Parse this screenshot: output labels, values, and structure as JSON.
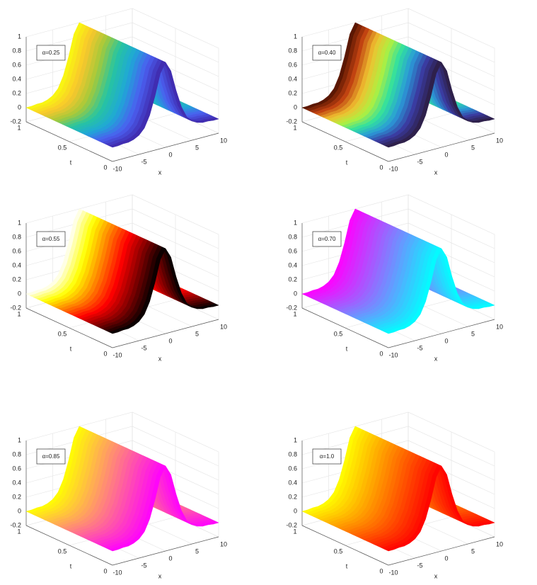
{
  "chart_data": [
    {
      "type": "surface",
      "annotation": "α=0.25",
      "xlabel": "x",
      "ylabel": "t",
      "x": [
        -10,
        -9,
        -8,
        -7,
        -6,
        -5,
        -4,
        -3,
        -2,
        -1,
        0,
        1,
        2,
        3,
        4,
        5,
        6,
        7,
        8,
        9,
        10
      ],
      "values": [
        0,
        0,
        0.01,
        0.01,
        0.03,
        0.07,
        0.15,
        0.31,
        0.56,
        0.86,
        1,
        0.86,
        0.56,
        0.31,
        0.15,
        0.07,
        0.03,
        0.01,
        0.01,
        0,
        0
      ],
      "xlim": [
        -10,
        10
      ],
      "ylim": [
        0,
        1
      ],
      "zlim": [
        -0.2,
        1
      ],
      "xticks": [
        -10,
        -5,
        0,
        5,
        10
      ],
      "yticks": [
        0,
        0.5,
        1
      ],
      "zticks": [
        -0.2,
        0,
        0.2,
        0.4,
        0.6,
        0.8,
        1
      ],
      "grid": true,
      "colormap": [
        "#3e26a8",
        "#4a5ff0",
        "#1fa8d6",
        "#27c5a0",
        "#a5c93a",
        "#f9c72c",
        "#f9fb0e"
      ]
    },
    {
      "type": "surface",
      "annotation": "α=0.40",
      "xlabel": "x",
      "ylabel": "t",
      "x": [
        -10,
        -9,
        -8,
        -7,
        -6,
        -5,
        -4,
        -3,
        -2,
        -1,
        0,
        1,
        2,
        3,
        4,
        5,
        6,
        7,
        8,
        9,
        10
      ],
      "values": [
        0,
        0,
        0.01,
        0.01,
        0.03,
        0.07,
        0.15,
        0.31,
        0.56,
        0.86,
        1,
        0.86,
        0.56,
        0.31,
        0.15,
        0.07,
        0.03,
        0.01,
        0.01,
        0,
        0
      ],
      "xlim": [
        -10,
        10
      ],
      "ylim": [
        0,
        1
      ],
      "zlim": [
        -0.2,
        1
      ],
      "xticks": [
        -10,
        -5,
        0,
        5,
        10
      ],
      "yticks": [
        0,
        0.5,
        1
      ],
      "zticks": [
        -0.2,
        0,
        0.2,
        0.4,
        0.6,
        0.8,
        1
      ],
      "grid": true,
      "colormap": [
        "#2c1c3c",
        "#3a3aa0",
        "#2a9ad8",
        "#30e0a0",
        "#b0f040",
        "#f0c030",
        "#c04010",
        "#4a1000"
      ]
    },
    {
      "type": "surface",
      "annotation": "α=0.55",
      "xlabel": "x",
      "ylabel": "t",
      "x": [
        -10,
        -9,
        -8,
        -7,
        -6,
        -5,
        -4,
        -3,
        -2,
        -1,
        0,
        1,
        2,
        3,
        4,
        5,
        6,
        7,
        8,
        9,
        10
      ],
      "values": [
        0,
        0,
        0.01,
        0.01,
        0.03,
        0.07,
        0.15,
        0.31,
        0.56,
        0.86,
        1,
        0.86,
        0.56,
        0.31,
        0.15,
        0.07,
        0.03,
        0.01,
        0.01,
        0,
        0
      ],
      "xlim": [
        -10,
        10
      ],
      "ylim": [
        0,
        1
      ],
      "zlim": [
        -0.2,
        1
      ],
      "xticks": [
        -10,
        -5,
        0,
        5,
        10
      ],
      "yticks": [
        0,
        0.5,
        1
      ],
      "zticks": [
        -0.2,
        0,
        0.2,
        0.4,
        0.6,
        0.8,
        1
      ],
      "grid": true,
      "colormap": [
        "#000000",
        "#800000",
        "#ff0000",
        "#ff8000",
        "#ffff00",
        "#ffffff"
      ]
    },
    {
      "type": "surface",
      "annotation": "α=0.70",
      "xlabel": "x",
      "ylabel": "t",
      "x": [
        -10,
        -9,
        -8,
        -7,
        -6,
        -5,
        -4,
        -3,
        -2,
        -1,
        0,
        1,
        2,
        3,
        4,
        5,
        6,
        7,
        8,
        9,
        10
      ],
      "values": [
        0,
        0,
        0.01,
        0.01,
        0.03,
        0.07,
        0.15,
        0.31,
        0.56,
        0.86,
        1,
        0.86,
        0.56,
        0.31,
        0.15,
        0.07,
        0.03,
        0.01,
        0.01,
        0,
        0
      ],
      "xlim": [
        -10,
        10
      ],
      "ylim": [
        0,
        1
      ],
      "zlim": [
        -0.2,
        1
      ],
      "xticks": [
        -10,
        -5,
        0,
        5,
        10
      ],
      "yticks": [
        0,
        0.5,
        1
      ],
      "zticks": [
        -0.2,
        0,
        0.2,
        0.4,
        0.6,
        0.8,
        1
      ],
      "grid": true,
      "colormap": [
        "#00ffff",
        "#ff00ff"
      ]
    },
    {
      "type": "surface",
      "annotation": "α=0.85",
      "xlabel": "x",
      "ylabel": "t",
      "x": [
        -10,
        -9,
        -8,
        -7,
        -6,
        -5,
        -4,
        -3,
        -2,
        -1,
        0,
        1,
        2,
        3,
        4,
        5,
        6,
        7,
        8,
        9,
        10
      ],
      "values": [
        0,
        0,
        0.01,
        0.01,
        0.03,
        0.07,
        0.15,
        0.31,
        0.56,
        0.86,
        1,
        0.86,
        0.56,
        0.31,
        0.15,
        0.07,
        0.03,
        0.01,
        0.01,
        0,
        0
      ],
      "xlim": [
        -10,
        10
      ],
      "ylim": [
        0,
        1
      ],
      "zlim": [
        -0.2,
        1
      ],
      "xticks": [
        -10,
        -5,
        0,
        5,
        10
      ],
      "yticks": [
        0,
        0.5,
        1
      ],
      "zticks": [
        -0.2,
        0,
        0.2,
        0.4,
        0.6,
        0.8,
        1
      ],
      "grid": true,
      "colormap": [
        "#ff00ff",
        "#ffff00"
      ]
    },
    {
      "type": "surface",
      "annotation": "α=1.0",
      "xlabel": "x",
      "ylabel": "t",
      "x": [
        -10,
        -9,
        -8,
        -7,
        -6,
        -5,
        -4,
        -3,
        -2,
        -1,
        0,
        1,
        2,
        3,
        4,
        5,
        6,
        7,
        8,
        9,
        10
      ],
      "values": [
        0,
        0,
        0.01,
        0.01,
        0.03,
        0.07,
        0.15,
        0.31,
        0.56,
        0.86,
        1,
        0.86,
        0.56,
        0.31,
        0.15,
        0.07,
        0.03,
        0.01,
        0.01,
        0,
        0
      ],
      "xlim": [
        -10,
        10
      ],
      "ylim": [
        0,
        1
      ],
      "zlim": [
        -0.2,
        1
      ],
      "xticks": [
        -10,
        -5,
        0,
        5,
        10
      ],
      "yticks": [
        0,
        0.5,
        1
      ],
      "zticks": [
        -0.2,
        0,
        0.2,
        0.4,
        0.6,
        0.8,
        1
      ],
      "grid": true,
      "colormap": [
        "#ff0000",
        "#ffff00"
      ]
    }
  ]
}
